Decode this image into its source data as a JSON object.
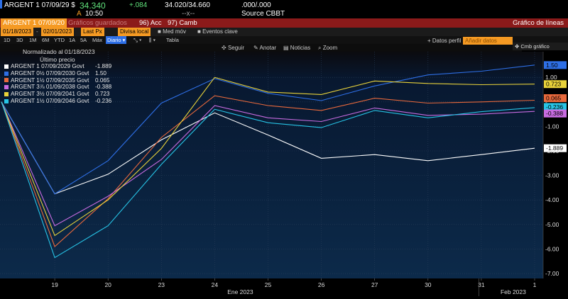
{
  "header": {
    "ticker": "ARGENT 1 07/09/29 $",
    "price_box": "34.340",
    "change": "+.084",
    "bid_ask": "34.020/34.660",
    "yield": ".000/.000",
    "time_prefix": "A",
    "time": "10:50",
    "dashes": "--x--",
    "source": "Source CBBT"
  },
  "redbar": {
    "ticker_field": "ARGENT 1 07/09/20",
    "faded_label": "Gráficos guardados",
    "menu1": "96) Acc",
    "menu2": "97) Camb",
    "title": "Gráfico de líneas"
  },
  "controls": {
    "start_date": "01/18/2023",
    "end_date": "02/01/2023",
    "price_type": "Last Px",
    "currency": "Divisa local",
    "med_mov": "Med móv",
    "eventos": "Eventos clave"
  },
  "periods": [
    "1D",
    "3D",
    "1M",
    "6M",
    "YTD",
    "1A",
    "5A",
    "Máx"
  ],
  "frequency": "Diario",
  "tabla": "Tabla",
  "tools": {
    "seguir": "Seguir",
    "anotar": "Anotar",
    "noticias": "Noticias",
    "zoom": "Zoom",
    "datos_perfil": "+ Datos perfil",
    "anadir": "Añadir datos",
    "cmb_grafico": "Cmb gráfico"
  },
  "legend": {
    "title": "Normalizado al 01/18/2023",
    "subtitle": "Último precio",
    "entries": [
      {
        "label": "ARGENT 1 07/09/2029 Govt",
        "value": "-1.889",
        "color": "#ffffff"
      },
      {
        "label": "ARGENT 0½ 07/09/2030 Govt",
        "value": "1.50",
        "color": "#2e6fe6"
      },
      {
        "label": "ARGENT 1½ 07/09/2035 Govt",
        "value": "0.065",
        "color": "#e8693c"
      },
      {
        "label": "ARGENT 3⅞ 01/09/2038 Govt",
        "value": "-0.388",
        "color": "#c86be0"
      },
      {
        "label": "ARGENT 3½ 07/09/2041 Govt",
        "value": "0.723",
        "color": "#e8d23a"
      },
      {
        "label": "ARGENT 1½ 07/09/2046 Govt",
        "value": "-0.236",
        "color": "#27c4e6"
      }
    ]
  },
  "chart_data": {
    "type": "line",
    "title": "Normalizado al 01/18/2023",
    "x": [
      "18",
      "19",
      "20",
      "23",
      "24",
      "25",
      "26",
      "27",
      "30",
      "31",
      "1"
    ],
    "x_tick_labels": [
      "19",
      "20",
      "23",
      "24",
      "25",
      "26",
      "27",
      "30",
      "31",
      "1"
    ],
    "month_labels": [
      "Ene 2023",
      "Feb 2023"
    ],
    "ylim": [
      -7.2,
      1.9
    ],
    "y_ticks": [
      "1.00",
      "-",
      "-1.00",
      "-2.00",
      "-3.00",
      "-4.00",
      "-5.00",
      "-6.00",
      "-7.00"
    ],
    "series": [
      {
        "name": "ARGENT 1 07/09/2029 Govt",
        "color": "#ffffff",
        "values": [
          0,
          -3.75,
          -2.95,
          -1.55,
          -0.45,
          -1.35,
          -2.3,
          -2.15,
          -2.4,
          -2.15,
          -1.889
        ]
      },
      {
        "name": "ARGENT 0½ 07/09/2030 Govt",
        "color": "#2e6fe6",
        "values": [
          0,
          -3.75,
          -2.4,
          -0.05,
          0.95,
          0.35,
          0.05,
          0.65,
          1.1,
          1.25,
          1.5
        ]
      },
      {
        "name": "ARGENT 1½ 07/09/2035 Govt",
        "color": "#e8693c",
        "values": [
          0,
          -5.9,
          -3.95,
          -1.45,
          0.25,
          -0.15,
          -0.35,
          0.15,
          -0.05,
          0.0,
          0.065
        ]
      },
      {
        "name": "ARGENT 3⅞ 01/09/2038 Govt",
        "color": "#c86be0",
        "values": [
          0,
          -5.05,
          -3.85,
          -2.35,
          -0.15,
          -0.65,
          -0.8,
          -0.25,
          -0.55,
          -0.5,
          -0.388
        ]
      },
      {
        "name": "ARGENT 3½ 07/09/2041 Govt",
        "color": "#e8d23a",
        "values": [
          0,
          -5.45,
          -4.0,
          -1.9,
          1.0,
          0.4,
          0.3,
          0.85,
          0.75,
          0.7,
          0.723
        ]
      },
      {
        "name": "ARGENT 1½ 07/09/2046 Govt",
        "color": "#27c4e6",
        "values": [
          0,
          -6.35,
          -5.05,
          -2.55,
          -0.3,
          -0.85,
          -1.05,
          -0.35,
          -0.65,
          -0.4,
          -0.236
        ]
      }
    ]
  }
}
